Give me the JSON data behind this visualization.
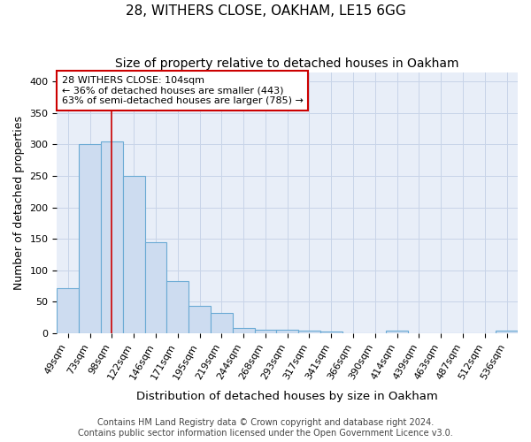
{
  "title1": "28, WITHERS CLOSE, OAKHAM, LE15 6GG",
  "title2": "Size of property relative to detached houses in Oakham",
  "xlabel": "Distribution of detached houses by size in Oakham",
  "ylabel": "Number of detached properties",
  "categories": [
    "49sqm",
    "73sqm",
    "98sqm",
    "122sqm",
    "146sqm",
    "171sqm",
    "195sqm",
    "219sqm",
    "244sqm",
    "268sqm",
    "293sqm",
    "317sqm",
    "341sqm",
    "366sqm",
    "390sqm",
    "414sqm",
    "439sqm",
    "463sqm",
    "487sqm",
    "512sqm",
    "536sqm"
  ],
  "values": [
    72,
    300,
    305,
    250,
    145,
    83,
    44,
    33,
    9,
    6,
    6,
    5,
    3,
    0,
    0,
    4,
    0,
    0,
    0,
    0,
    4
  ],
  "bar_color": "#cddcf0",
  "bar_edge_color": "#6aaad4",
  "vline_x": 2.0,
  "vline_color": "#cc0000",
  "annotation_text": "28 WITHERS CLOSE: 104sqm\n← 36% of detached houses are smaller (443)\n63% of semi-detached houses are larger (785) →",
  "annotation_box_color": "#ffffff",
  "annotation_edge_color": "#cc0000",
  "ylim": [
    0,
    415
  ],
  "yticks": [
    0,
    50,
    100,
    150,
    200,
    250,
    300,
    350,
    400
  ],
  "grid_color": "#c8d4e8",
  "background_color": "#e8eef8",
  "footer_text": "Contains HM Land Registry data © Crown copyright and database right 2024.\nContains public sector information licensed under the Open Government Licence v3.0.",
  "title1_fontsize": 11,
  "title2_fontsize": 10,
  "xlabel_fontsize": 9.5,
  "ylabel_fontsize": 9,
  "tick_fontsize": 8,
  "footer_fontsize": 7,
  "annotation_fontsize": 8
}
